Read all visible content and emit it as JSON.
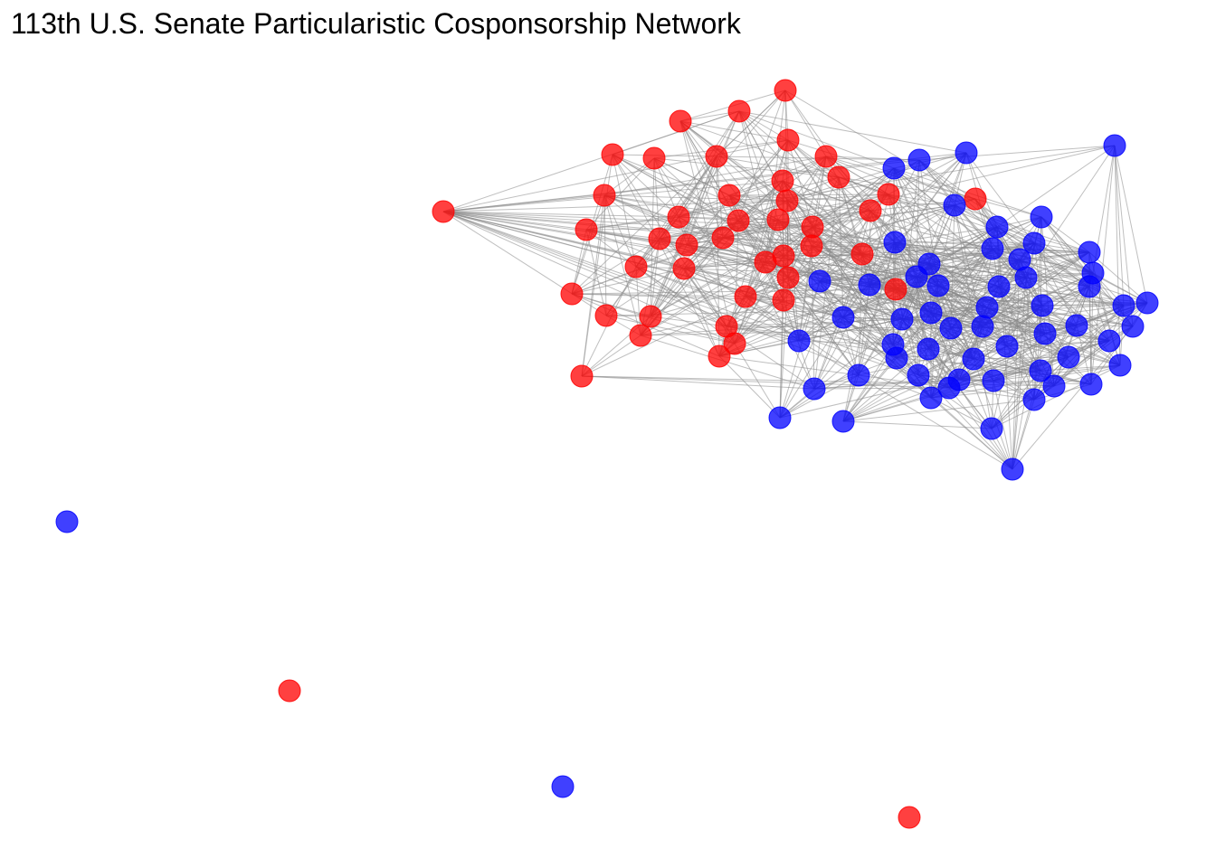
{
  "title": "113th U.S. Senate Particularistic Cosponsorship Network",
  "colors": {
    "republican": "#ff0000",
    "democrat": "#0000ff",
    "edge": "#8a8a8a",
    "background": "#ffffff"
  },
  "graph": {
    "node_count": 104,
    "red_node_count": 45,
    "blue_node_count": 59,
    "isolated_nodes": 4,
    "edge_density": "dense"
  }
}
